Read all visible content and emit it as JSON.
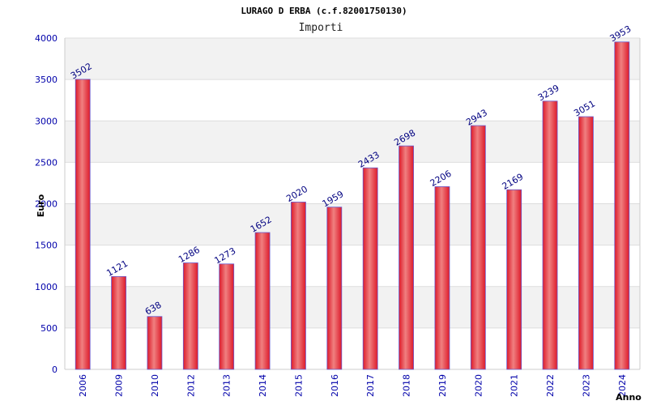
{
  "chart_data": {
    "type": "bar",
    "title": "LURAGO D ERBA (c.f.82001750130)",
    "subtitle": "Importi",
    "xlabel": "Anno",
    "ylabel": "Euro",
    "ylim": [
      0,
      4000
    ],
    "yticks": [
      "0",
      "500",
      "1000",
      "1500",
      "2000",
      "2500",
      "3000",
      "3500",
      "4000"
    ],
    "grid": true,
    "categories": [
      "2006",
      "2009",
      "2010",
      "2012",
      "2013",
      "2014",
      "2015",
      "2016",
      "2017",
      "2018",
      "2019",
      "2020",
      "2021",
      "2022",
      "2023",
      "2024"
    ],
    "values": [
      3502,
      1121,
      638,
      1286,
      1273,
      1652,
      2020,
      1959,
      2433,
      2698,
      2206,
      2943,
      2169,
      3239,
      3051,
      3953
    ],
    "colors": {
      "bar_mid": "#f08080",
      "bar_edge": "#dd1a2a",
      "bar_outline": "#6a5acd",
      "tick_label": "#0000aa",
      "value_label": "#000080",
      "band": "#f2f2f2",
      "gridline": "#dddddd"
    }
  }
}
